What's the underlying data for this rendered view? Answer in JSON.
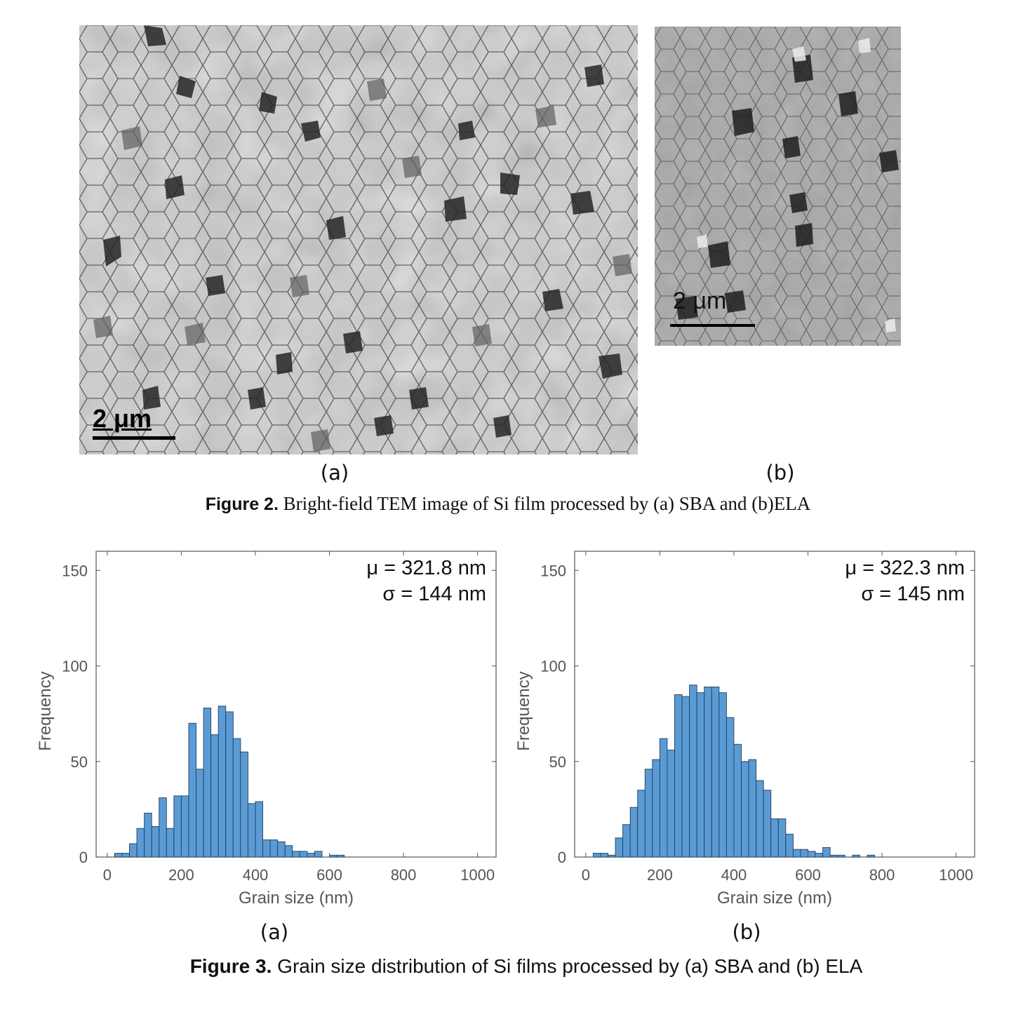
{
  "figure2": {
    "panel_a": {
      "scale_label": "2 μm",
      "sublabel": "(a)"
    },
    "panel_b": {
      "scale_label": "2 μm",
      "sublabel": "(b)"
    },
    "caption_bold": "Figure 2.",
    "caption_text": " Bright-field TEM image of Si film processed by (a) SBA and (b)ELA"
  },
  "figure3": {
    "caption_bold": "Figure 3.",
    "caption_text": " Grain size distribution of Si films processed by (a) SBA and (b) ELA",
    "sublabel_a": "(a)",
    "sublabel_b": "(b)"
  },
  "colors": {
    "bar_fill": "#5b9bd5",
    "bar_edge": "#1f3f5a",
    "axis": "#555555"
  },
  "chart_data": [
    {
      "type": "bar",
      "panel": "(a)",
      "xlabel": "Grain size (nm)",
      "ylabel": "Frequency",
      "xlim": [
        -30,
        1050
      ],
      "ylim": [
        0,
        160
      ],
      "xticks": [
        0,
        200,
        400,
        600,
        800,
        1000
      ],
      "yticks": [
        0,
        50,
        100,
        150
      ],
      "bin_width": 20,
      "bin_start": 20,
      "values": [
        2,
        2,
        7,
        15,
        23,
        16,
        31,
        15,
        32,
        32,
        70,
        46,
        78,
        64,
        79,
        76,
        62,
        55,
        28,
        29,
        9,
        9,
        8,
        6,
        3,
        3,
        2,
        3,
        0,
        1,
        1,
        0,
        0,
        0,
        0,
        0,
        0,
        0,
        0,
        0,
        0,
        0,
        0,
        0,
        0,
        0,
        0,
        0,
        0
      ],
      "annotations": [
        "μ = 321.8 nm",
        "σ = 144 nm"
      ]
    },
    {
      "type": "bar",
      "panel": "(b)",
      "xlabel": "Grain size (nm)",
      "ylabel": "Frequency",
      "xlim": [
        -30,
        1050
      ],
      "ylim": [
        0,
        160
      ],
      "xticks": [
        0,
        200,
        400,
        600,
        800,
        1000
      ],
      "yticks": [
        0,
        50,
        100,
        150
      ],
      "bin_width": 20,
      "bin_start": 20,
      "values": [
        2,
        2,
        1,
        10,
        17,
        26,
        35,
        46,
        51,
        62,
        56,
        85,
        84,
        90,
        86,
        89,
        89,
        86,
        73,
        59,
        50,
        51,
        40,
        35,
        20,
        20,
        12,
        4,
        4,
        3,
        2,
        5,
        1,
        1,
        0,
        1,
        0,
        1,
        0,
        0,
        0,
        0,
        0,
        0,
        0,
        0,
        0,
        0,
        0
      ],
      "annotations": [
        "μ = 322.3 nm",
        "σ = 145 nm"
      ]
    }
  ]
}
